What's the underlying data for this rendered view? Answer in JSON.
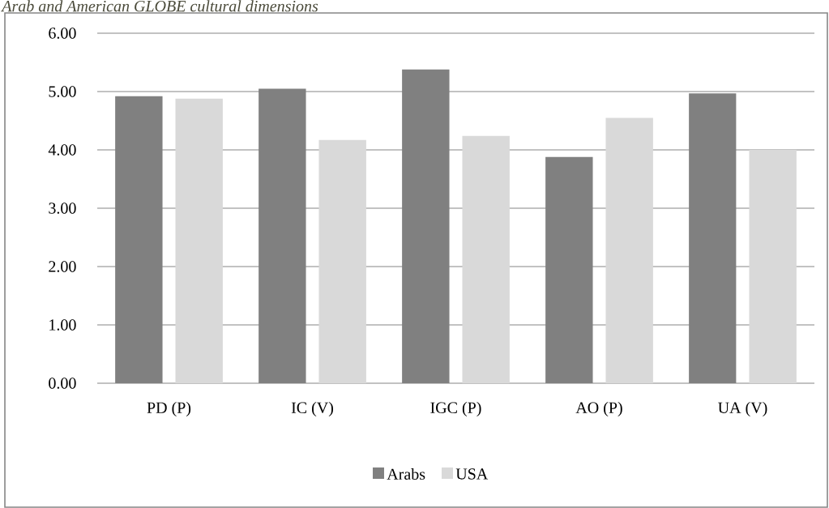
{
  "chart_data": {
    "type": "bar",
    "title": "Arab and American GLOBE cultural dimensions",
    "categories": [
      "PD (P)",
      "IC (V)",
      "IGC (P)",
      "AO (P)",
      "UA (V)"
    ],
    "series": [
      {
        "name": "Arabs",
        "color": "#808080",
        "values": [
          4.92,
          5.05,
          5.38,
          3.88,
          4.97
        ]
      },
      {
        "name": "USA",
        "color": "#d9d9d9",
        "values": [
          4.88,
          4.17,
          4.24,
          4.55,
          4.0
        ]
      }
    ],
    "ylim": [
      0,
      6
    ],
    "yticks": [
      {
        "value": 0,
        "label": "0.00"
      },
      {
        "value": 1,
        "label": "1.00"
      },
      {
        "value": 2,
        "label": "2.00"
      },
      {
        "value": 3,
        "label": "3.00"
      },
      {
        "value": 4,
        "label": "4.00"
      },
      {
        "value": 5,
        "label": "5.00"
      },
      {
        "value": 6,
        "label": "6.00"
      }
    ],
    "grid": "y",
    "legend": "bottom"
  }
}
